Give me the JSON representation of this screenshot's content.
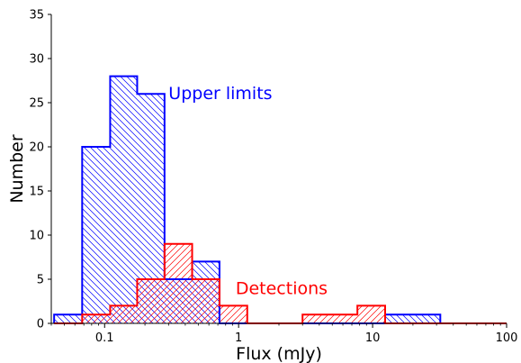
{
  "chart_data": {
    "type": "histogram",
    "xlabel": "Flux (mJy)",
    "ylabel": "Number",
    "xscale": "log",
    "xlim": [
      0.04,
      100
    ],
    "ylim": [
      0,
      35
    ],
    "xticks": [
      {
        "value": 0.1,
        "label": "0.1"
      },
      {
        "value": 1,
        "label": "1"
      },
      {
        "value": 10,
        "label": "10"
      },
      {
        "value": 100,
        "label": "100"
      }
    ],
    "yticks": [
      0,
      5,
      10,
      15,
      20,
      25,
      30,
      35
    ],
    "series": [
      {
        "name": "Upper limits",
        "color": "#0000ff",
        "hatch": "backslash",
        "bins": [
          {
            "x0": 0.042,
            "x1": 0.068,
            "count": 1
          },
          {
            "x0": 0.068,
            "x1": 0.11,
            "count": 20
          },
          {
            "x0": 0.11,
            "x1": 0.175,
            "count": 28
          },
          {
            "x0": 0.175,
            "x1": 0.28,
            "count": 26
          },
          {
            "x0": 0.28,
            "x1": 0.45,
            "count": 5
          },
          {
            "x0": 0.45,
            "x1": 0.72,
            "count": 7
          },
          {
            "x0": 0.72,
            "x1": 1.16,
            "count": 0
          },
          {
            "x0": 1.16,
            "x1": 1.86,
            "count": 0
          },
          {
            "x0": 1.86,
            "x1": 3.0,
            "count": 0
          },
          {
            "x0": 3.0,
            "x1": 4.8,
            "count": 0
          },
          {
            "x0": 4.8,
            "x1": 7.7,
            "count": 0
          },
          {
            "x0": 7.7,
            "x1": 12.4,
            "count": 0
          },
          {
            "x0": 12.4,
            "x1": 20.0,
            "count": 1
          },
          {
            "x0": 20.0,
            "x1": 32.0,
            "count": 1
          },
          {
            "x0": 32.0,
            "x1": 100,
            "count": 0
          }
        ]
      },
      {
        "name": "Detections",
        "color": "#ff0000",
        "hatch": "slash",
        "bins": [
          {
            "x0": 0.042,
            "x1": 0.068,
            "count": 0
          },
          {
            "x0": 0.068,
            "x1": 0.11,
            "count": 1
          },
          {
            "x0": 0.11,
            "x1": 0.175,
            "count": 2
          },
          {
            "x0": 0.175,
            "x1": 0.28,
            "count": 5
          },
          {
            "x0": 0.28,
            "x1": 0.45,
            "count": 9
          },
          {
            "x0": 0.45,
            "x1": 0.72,
            "count": 5
          },
          {
            "x0": 0.72,
            "x1": 1.16,
            "count": 2
          },
          {
            "x0": 1.16,
            "x1": 1.86,
            "count": 0
          },
          {
            "x0": 1.86,
            "x1": 3.0,
            "count": 0
          },
          {
            "x0": 3.0,
            "x1": 4.8,
            "count": 1
          },
          {
            "x0": 4.8,
            "x1": 7.7,
            "count": 1
          },
          {
            "x0": 7.7,
            "x1": 12.4,
            "count": 2
          },
          {
            "x0": 12.4,
            "x1": 100,
            "count": 0
          }
        ]
      }
    ],
    "annotations": [
      {
        "text": "Upper limits",
        "x": 0.3,
        "y": 25.4,
        "color": "#0000ff"
      },
      {
        "text": "Detections",
        "x": 0.95,
        "y": 3.3,
        "color": "#ff0000"
      }
    ]
  }
}
